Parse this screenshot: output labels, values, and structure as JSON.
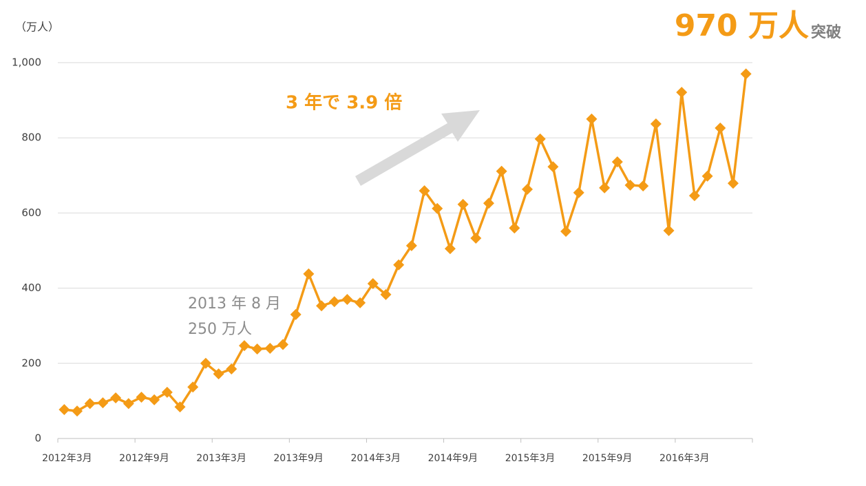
{
  "chart_data": {
    "type": "line",
    "unit_label": "（万人）",
    "headline": "970 万人",
    "headline_suffix": "突破",
    "annotations": [
      "3 年で 3.9 倍",
      "2013 年 8 月",
      "250 万人"
    ],
    "categories": [
      "2012年3月",
      null,
      null,
      null,
      null,
      null,
      "2012年9月",
      null,
      null,
      null,
      null,
      null,
      "2013年3月",
      null,
      null,
      null,
      null,
      null,
      "2013年9月",
      null,
      null,
      null,
      null,
      null,
      "2014年3月",
      null,
      null,
      null,
      null,
      null,
      "2014年9月",
      null,
      null,
      null,
      null,
      null,
      "2015年3月",
      null,
      null,
      null,
      null,
      null,
      "2015年9月",
      null,
      null,
      null,
      null,
      null,
      "2016年3月",
      null,
      null,
      null,
      null,
      null
    ],
    "series": [
      {
        "color": "#f49b16",
        "values": [
          77,
          73,
          93,
          95,
          108,
          93,
          110,
          103,
          123,
          84,
          137,
          200,
          172,
          185,
          247,
          238,
          240,
          250,
          330,
          438,
          353,
          364,
          370,
          361,
          412,
          383,
          462,
          513,
          659,
          612,
          505,
          623,
          533,
          626,
          711,
          560,
          663,
          797,
          723,
          551,
          654,
          850,
          667,
          736,
          674,
          672,
          837,
          553,
          921,
          646,
          698,
          826,
          679,
          970
        ]
      }
    ],
    "ylim": [
      0,
      1000
    ],
    "yticks": [
      0,
      200,
      400,
      600,
      800,
      {
        "value": 1000,
        "label": "1,000"
      }
    ],
    "grid": true
  }
}
